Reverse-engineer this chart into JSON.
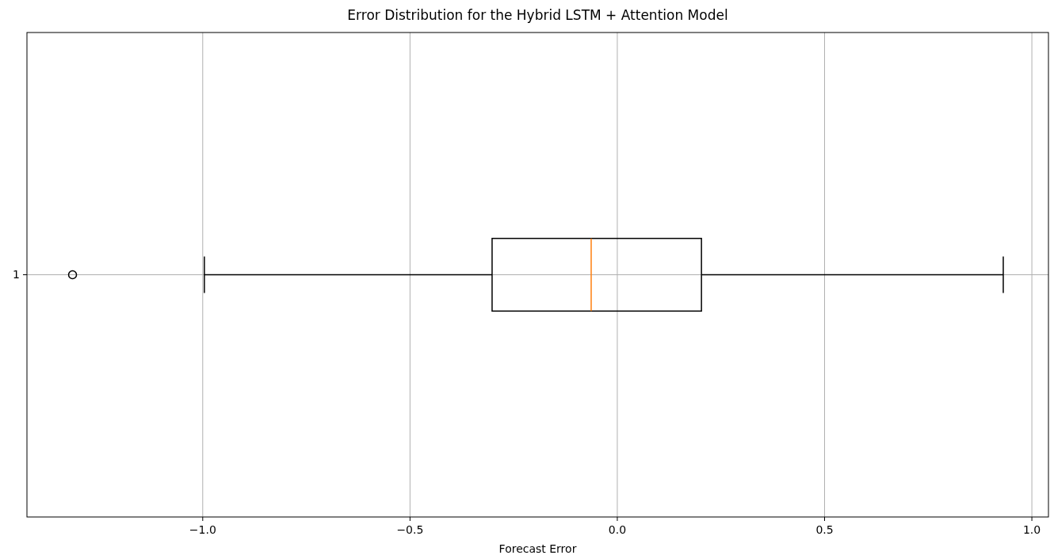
{
  "chart_data": {
    "type": "box",
    "title": "Error Distribution for the Hybrid LSTM + Attention Model",
    "xlabel": "Forecast Error",
    "orientation": "horizontal",
    "categories": [
      "1"
    ],
    "boxes": [
      {
        "low": -0.996,
        "q1": -0.302,
        "median": -0.063,
        "q3": 0.203,
        "high": 0.931,
        "outliers": [
          -1.314
        ]
      }
    ],
    "xlim": [
      -1.424,
      1.04
    ],
    "xticks": [
      {
        "value": -1,
        "label": "−1.0"
      },
      {
        "value": -0.5,
        "label": "−0.5"
      },
      {
        "value": 0,
        "label": "0.0"
      },
      {
        "value": 0.5,
        "label": "0.5"
      },
      {
        "value": 1,
        "label": "1.0"
      }
    ],
    "grid": true
  }
}
